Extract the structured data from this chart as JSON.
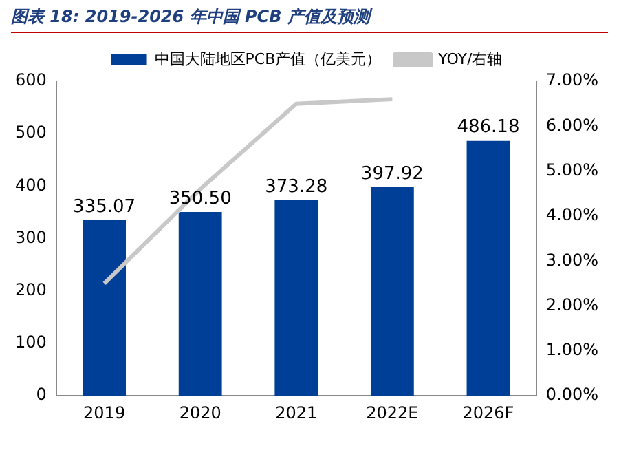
{
  "chart_data": {
    "type": "bar",
    "title": "图表 18:  2019-2026 年中国 PCB 产值及预测",
    "categories": [
      "2019",
      "2020",
      "2021",
      "2022E",
      "2026F"
    ],
    "series": [
      {
        "name": "中国大陆地区PCB产值（亿美元）",
        "color": "#003f98",
        "values": [
          335.07,
          350.5,
          373.28,
          397.92,
          486.18
        ],
        "value_labels": [
          "335.07",
          "350.50",
          "373.28",
          "397.92",
          "486.18"
        ]
      },
      {
        "name": "YOY/右轴",
        "type": "line",
        "axis": "y2",
        "color": "#c8c8c8",
        "values": [
          2.5,
          4.6,
          6.5,
          6.6,
          null
        ]
      }
    ],
    "ylim": [
      0,
      600
    ],
    "yticks": [
      0,
      100,
      200,
      300,
      400,
      500,
      600
    ],
    "y2lim": [
      0,
      7
    ],
    "y2ticks": [
      {
        "value": 0,
        "label": "0.00%"
      },
      {
        "value": 1,
        "label": "1.00%"
      },
      {
        "value": 2,
        "label": "2.00%"
      },
      {
        "value": 3,
        "label": "3.00%"
      },
      {
        "value": 4,
        "label": "4.00%"
      },
      {
        "value": 5,
        "label": "5.00%"
      },
      {
        "value": 6,
        "label": "6.00%"
      },
      {
        "value": 7,
        "label": "7.00%"
      }
    ],
    "legend": "top",
    "grid": false
  }
}
